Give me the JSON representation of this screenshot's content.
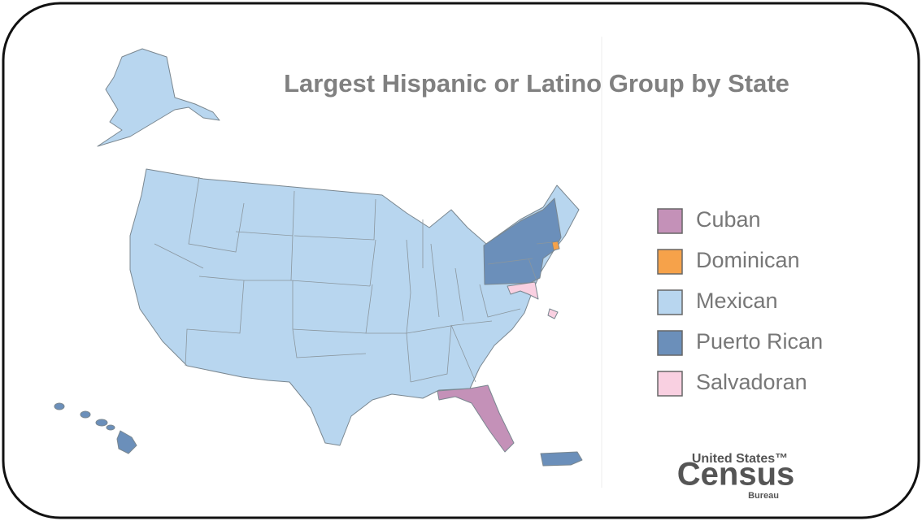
{
  "title": "Largest Hispanic or Latino Group by State",
  "legend": [
    {
      "label": "Cuban",
      "color": "#c491b8"
    },
    {
      "label": "Dominican",
      "color": "#f6a24a"
    },
    {
      "label": "Mexican",
      "color": "#b8d6ef"
    },
    {
      "label": "Puerto Rican",
      "color": "#6b8fba"
    },
    {
      "label": "Salvadoran",
      "color": "#f9d0e1"
    }
  ],
  "logo": {
    "top": "United States™",
    "main": "Census",
    "bottom": "Bureau"
  }
}
